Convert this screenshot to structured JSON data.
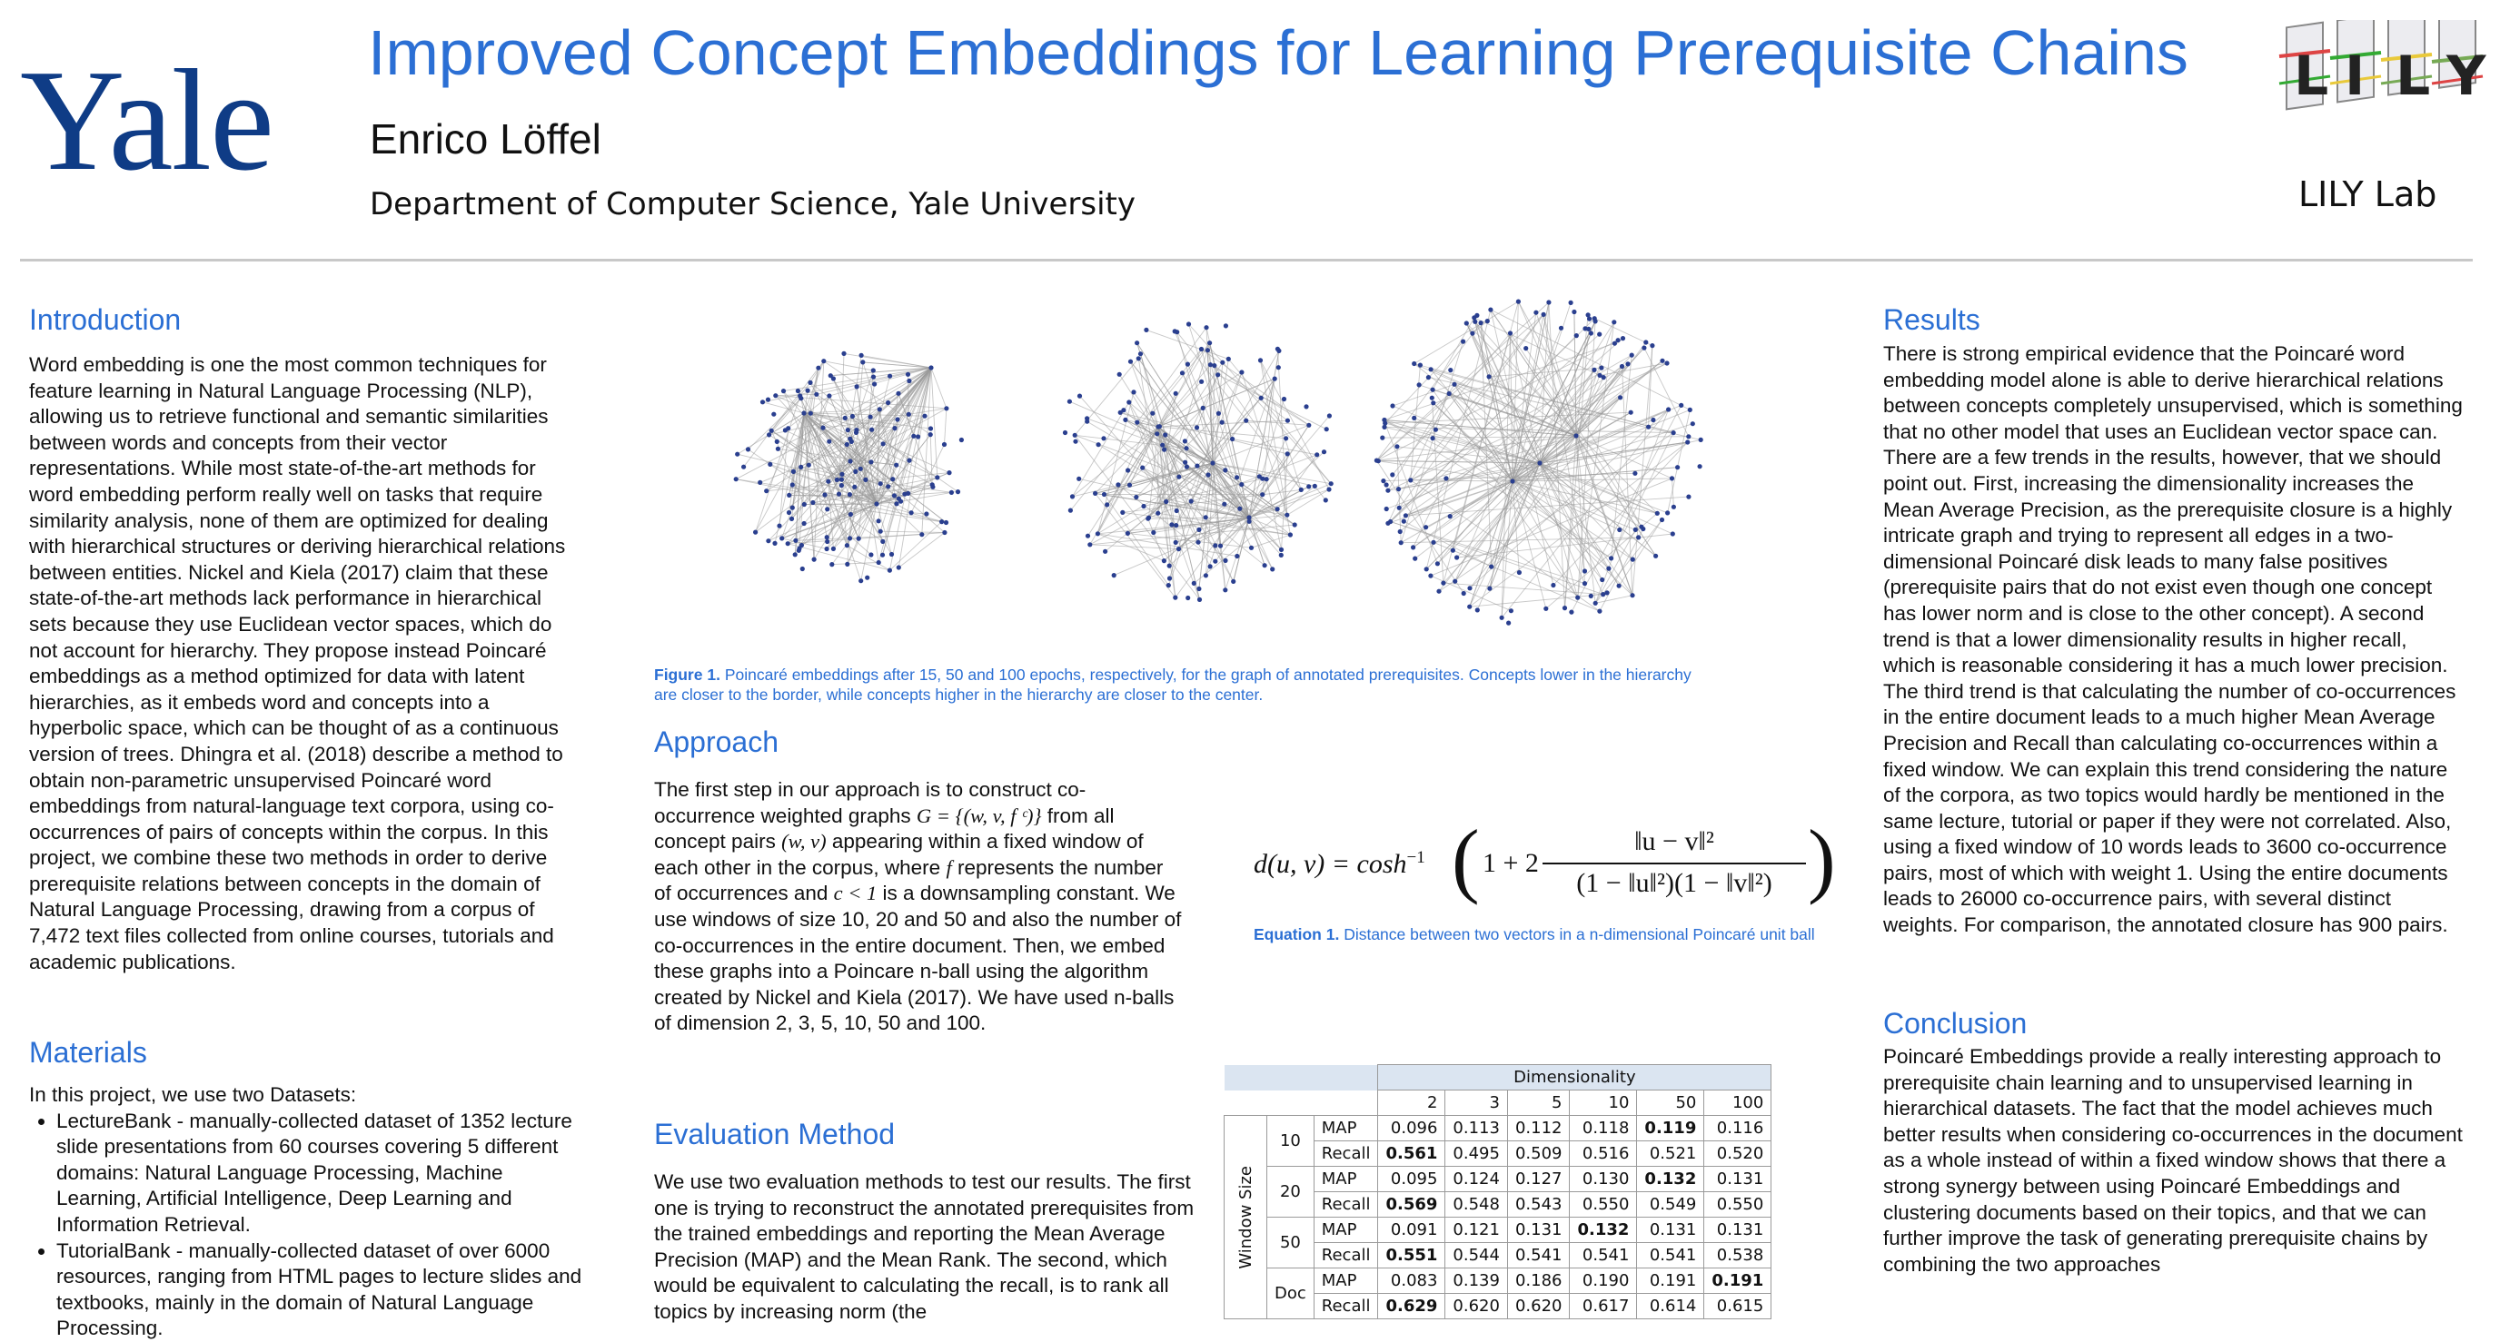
{
  "header": {
    "logo": "Yale",
    "title": "Improved Concept Embeddings for Learning Prerequisite Chains",
    "author": "Enrico Löffel",
    "department": "Department of Computer Science, Yale University",
    "lab": "LILY Lab",
    "lab_logo_letters": [
      "L",
      "I",
      "L",
      "Y"
    ]
  },
  "introduction": {
    "heading": "Introduction",
    "text": "Word embedding is one the most common techniques for feature learning in Natural Language Processing (NLP), allowing us to retrieve functional and semantic similarities between words and concepts from their vector representations. While most state-of-the-art methods for word embedding perform really well on tasks that require similarity analysis, none of them are optimized for dealing with hierarchical structures or deriving hierarchical relations between entities. Nickel and Kiela (2017) claim that these state-of-the-art methods lack performance in hierarchical sets because they use Euclidean vector spaces, which do not account for hierarchy. They propose instead Poincaré embeddings as a method optimized for data with latent hierarchies, as it embeds word and concepts into a hyperbolic space, which can be thought of as a continuous version of trees. Dhingra et al. (2018) describe a method to obtain non-parametric unsupervised Poincaré word embeddings from natural-language text corpora, using co-occurrences of pairs of concepts within the corpus. In this project, we combine these two methods in order to derive prerequisite relations between concepts in the domain of Natural Language Processing, drawing from a corpus of 7,472 text files collected from online courses, tutorials and academic publications."
  },
  "materials": {
    "heading": "Materials",
    "intro": "In this project, we use two Datasets:",
    "items": [
      "LectureBank - manually-collected dataset of 1352 lecture slide presentations from 60 courses covering 5 different domains: Natural Language Processing, Machine Learning, Artificial Intelligence, Deep Learning and Information Retrieval.",
      "TutorialBank - manually-collected dataset of over 6000 resources, ranging from HTML pages to lecture slides and textbooks, mainly in the domain of Natural Language Processing."
    ]
  },
  "figure1": {
    "label": "Figure 1.",
    "caption": "Poincaré embeddings after 15, 50 and 100 epochs, respectively, for the graph of annotated prerequisites. Concepts lower in the hierarchy are closer to the border, while concepts higher in the hierarchy are closer to the center.",
    "node_color": "#2a3f8f",
    "edge_color": "#9a9a9a"
  },
  "approach": {
    "heading": "Approach",
    "text_before_math": "The first step in our approach is to  construct co-occurrence weighted graphs ",
    "graph_math": "G = {(w, v, f ᶜ)}",
    "text_2": " from all concept pairs ",
    "pair_math": "(w, v)",
    "text_3": " appearing within a fixed window of each other in the corpus, where ",
    "f_math": "f",
    "text_4": " represents the number of occurrences and ",
    "c_math": "c < 1",
    "text_5": " is a downsampling constant. We use windows of size 10, 20 and 50 and also the number of co-occurrences in the entire document. Then, we embed these graphs into a Poincare n-ball using the algorithm created by Nickel and Kiela (2017). We have used n-balls of dimension 2, 3, 5, 10, 50 and 100."
  },
  "equation1": {
    "lhs": "d(u, v) = cosh",
    "exp": "−1",
    "one_plus_two": "1 + 2",
    "numerator": "‖u − v‖²",
    "denominator": "(1 − ‖u‖²)(1 − ‖v‖²)",
    "label": "Equation 1.",
    "caption": "Distance between two vectors in a n-dimensional Poincaré unit ball"
  },
  "evaluation": {
    "heading": "Evaluation Method",
    "text": "We use two evaluation methods to test our results. The first one is trying to reconstruct the annotated prerequisites from the trained embeddings and reporting the Mean Average Precision (MAP) and the Mean Rank. The second, which would be equivalent to calculating the recall, is to rank all topics by increasing norm (the"
  },
  "results_table": {
    "dimensionality_label": "Dimensionality",
    "window_label": "Window Size",
    "dims": [
      "2",
      "3",
      "5",
      "10",
      "50",
      "100"
    ],
    "groups": [
      {
        "window": "10",
        "rows": [
          {
            "metric": "MAP",
            "values": [
              "0.096",
              "0.113",
              "0.112",
              "0.118",
              "0.119",
              "0.116"
            ],
            "bold": [
              4
            ]
          },
          {
            "metric": "Recall",
            "values": [
              "0.561",
              "0.495",
              "0.509",
              "0.516",
              "0.521",
              "0.520"
            ],
            "bold": [
              0
            ]
          }
        ]
      },
      {
        "window": "20",
        "rows": [
          {
            "metric": "MAP",
            "values": [
              "0.095",
              "0.124",
              "0.127",
              "0.130",
              "0.132",
              "0.131"
            ],
            "bold": [
              4
            ]
          },
          {
            "metric": "Recall",
            "values": [
              "0.569",
              "0.548",
              "0.543",
              "0.550",
              "0.549",
              "0.550"
            ],
            "bold": [
              0
            ]
          }
        ]
      },
      {
        "window": "50",
        "rows": [
          {
            "metric": "MAP",
            "values": [
              "0.091",
              "0.121",
              "0.131",
              "0.132",
              "0.131",
              "0.131"
            ],
            "bold": [
              3
            ]
          },
          {
            "metric": "Recall",
            "values": [
              "0.551",
              "0.544",
              "0.541",
              "0.541",
              "0.541",
              "0.538"
            ],
            "bold": [
              0
            ]
          }
        ]
      },
      {
        "window": "Doc",
        "rows": [
          {
            "metric": "MAP",
            "values": [
              "0.083",
              "0.139",
              "0.186",
              "0.190",
              "0.191",
              "0.191"
            ],
            "bold": [
              5
            ]
          },
          {
            "metric": "Recall",
            "values": [
              "0.629",
              "0.620",
              "0.620",
              "0.617",
              "0.614",
              "0.615"
            ],
            "bold": [
              0
            ]
          }
        ]
      }
    ]
  },
  "results": {
    "heading": "Results",
    "text": "There is strong empirical evidence that the Poincaré word embedding model alone is able to derive hierarchical relations between concepts completely unsupervised, which is something that no other model that uses an Euclidean vector space can. There are a few trends in the results, however, that we should point out. First, increasing the dimensionality increases the Mean Average Precision, as the prerequisite closure is a highly intricate graph and trying to represent all edges in a two-dimensional Poincaré disk leads to many false positives (prerequisite pairs that do not exist even though one concept has lower norm and is close to the other concept). A second trend is that a lower dimensionality results in higher recall, which is reasonable considering it has a much lower precision. The third trend is that calculating the number of co-occurrences in the entire document leads to a much higher Mean Average Precision and Recall than calculating co-occurrences within a fixed window. We can explain this trend considering the nature of the corpora, as two topics would hardly be mentioned in the same lecture, tutorial or paper if they were not correlated. Also, using a fixed window of 10 words leads to 3600 co-occurrence pairs, most of which with weight 1. Using the entire documents leads to 26000 co-occurrence pairs, with several distinct weights. For comparison, the annotated closure has 900 pairs."
  },
  "conclusion": {
    "heading": "Conclusion",
    "text": "Poincaré Embeddings provide a really interesting approach to prerequisite chain learning and to unsupervised learning in hierarchical datasets. The fact that the model achieves much better results when considering co-occurrences in the document as a whole instead of within a fixed window shows that there a strong synergy between using Poincaré Embeddings and clustering documents based on their topics, and that we can further improve the task of generating prerequisite chains by combining the two approaches"
  }
}
